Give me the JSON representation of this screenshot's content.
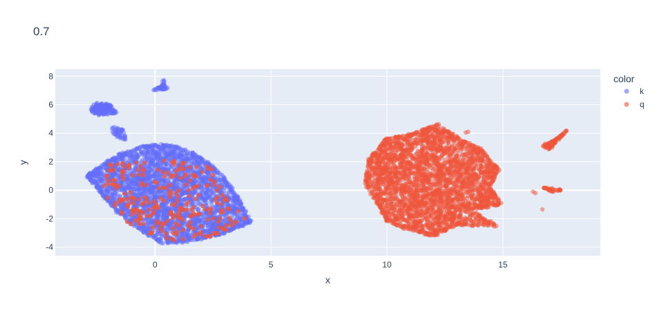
{
  "chart_data": {
    "type": "scatter",
    "title": "0.7",
    "xlabel": "x",
    "ylabel": "y",
    "xlim": [
      -4.3,
      19.2
    ],
    "ylim": [
      -4.6,
      8.5
    ],
    "x_ticks": [
      0,
      5,
      10,
      15
    ],
    "y_ticks": [
      -4,
      -2,
      0,
      2,
      4,
      6,
      8
    ],
    "grid": true,
    "legend": {
      "title": "color",
      "position": "right"
    },
    "series": [
      {
        "name": "k",
        "color": "#636efa",
        "regions": [
          {
            "shape": "blob",
            "center": [
              0.7,
              -0.3
            ],
            "outline": [
              [
                -2.9,
                1.0
              ],
              [
                -2.2,
                1.8
              ],
              [
                -1.5,
                2.5
              ],
              [
                -0.6,
                3.0
              ],
              [
                0.2,
                3.2
              ],
              [
                1.0,
                3.0
              ],
              [
                2.0,
                2.3
              ],
              [
                2.9,
                1.0
              ],
              [
                3.6,
                -0.6
              ],
              [
                4.1,
                -2.2
              ],
              [
                3.0,
                -3.0
              ],
              [
                1.5,
                -3.6
              ],
              [
                0.3,
                -3.7
              ],
              [
                -0.7,
                -2.7
              ],
              [
                -1.7,
                -1.4
              ],
              [
                -2.5,
                0.2
              ]
            ],
            "count": 2600
          },
          {
            "shape": "blob",
            "center": [
              -2.3,
              5.7
            ],
            "outline": [
              [
                -2.8,
                5.6
              ],
              [
                -2.5,
                6.1
              ],
              [
                -1.9,
                6.0
              ],
              [
                -1.7,
                5.4
              ],
              [
                -2.4,
                5.3
              ]
            ],
            "count": 140
          },
          {
            "shape": "blob",
            "center": [
              0.3,
              7.2
            ],
            "outline": [
              [
                -0.1,
                7.0
              ],
              [
                0.3,
                7.4
              ],
              [
                0.4,
                7.7
              ],
              [
                0.5,
                7.1
              ]
            ],
            "count": 40
          },
          {
            "shape": "blob",
            "center": [
              -1.6,
              4.1
            ],
            "outline": [
              [
                -1.9,
                4.4
              ],
              [
                -1.4,
                4.3
              ],
              [
                -1.2,
                3.5
              ],
              [
                -1.6,
                3.6
              ]
            ],
            "count": 40
          }
        ]
      },
      {
        "name": "q",
        "color": "#ef553b",
        "regions": [
          {
            "shape": "blob",
            "center": [
              11.9,
              0.6
            ],
            "outline": [
              [
                9.2,
                2.1
              ],
              [
                10.0,
                3.6
              ],
              [
                11.0,
                3.9
              ],
              [
                12.2,
                4.6
              ],
              [
                13.2,
                3.5
              ],
              [
                14.0,
                2.9
              ],
              [
                14.8,
                1.5
              ],
              [
                14.4,
                0.2
              ],
              [
                14.9,
                -1.0
              ],
              [
                13.5,
                -1.4
              ],
              [
                14.8,
                -2.5
              ],
              [
                13.0,
                -2.4
              ],
              [
                12.0,
                -3.2
              ],
              [
                10.8,
                -2.7
              ],
              [
                10.0,
                -2.1
              ],
              [
                9.6,
                -0.9
              ],
              [
                9.1,
                0.4
              ]
            ],
            "count": 2800
          },
          {
            "shape": "blob",
            "center": [
              17.3,
              3.6
            ],
            "outline": [
              [
                16.7,
                3.1
              ],
              [
                17.2,
                3.5
              ],
              [
                17.9,
                4.4
              ],
              [
                17.6,
                3.9
              ],
              [
                17.0,
                2.9
              ]
            ],
            "count": 90
          },
          {
            "shape": "blob",
            "center": [
              17.2,
              0.1
            ],
            "outline": [
              [
                16.7,
                0.2
              ],
              [
                17.4,
                0.1
              ],
              [
                17.6,
                0.0
              ],
              [
                17.1,
                -0.1
              ]
            ],
            "count": 30
          },
          {
            "shape": "points",
            "points": [
              [
                16.3,
                -0.1
              ],
              [
                16.4,
                -0.2
              ],
              [
                16.7,
                -1.35
              ],
              [
                13.5,
                4.1
              ],
              [
                13.4,
                4.05
              ]
            ]
          },
          {
            "shape": "scatter-within",
            "center": [
              0.8,
              -0.4
            ],
            "outline": [
              [
                -2.0,
                1.8
              ],
              [
                -0.5,
                2.2
              ],
              [
                1.0,
                2.0
              ],
              [
                2.4,
                1.6
              ],
              [
                3.0,
                -0.5
              ],
              [
                3.9,
                -2.0
              ],
              [
                2.5,
                -3.2
              ],
              [
                0.5,
                -3.5
              ],
              [
                -1.0,
                -2.5
              ],
              [
                -2.2,
                -0.2
              ]
            ],
            "count": 230
          }
        ]
      }
    ]
  }
}
